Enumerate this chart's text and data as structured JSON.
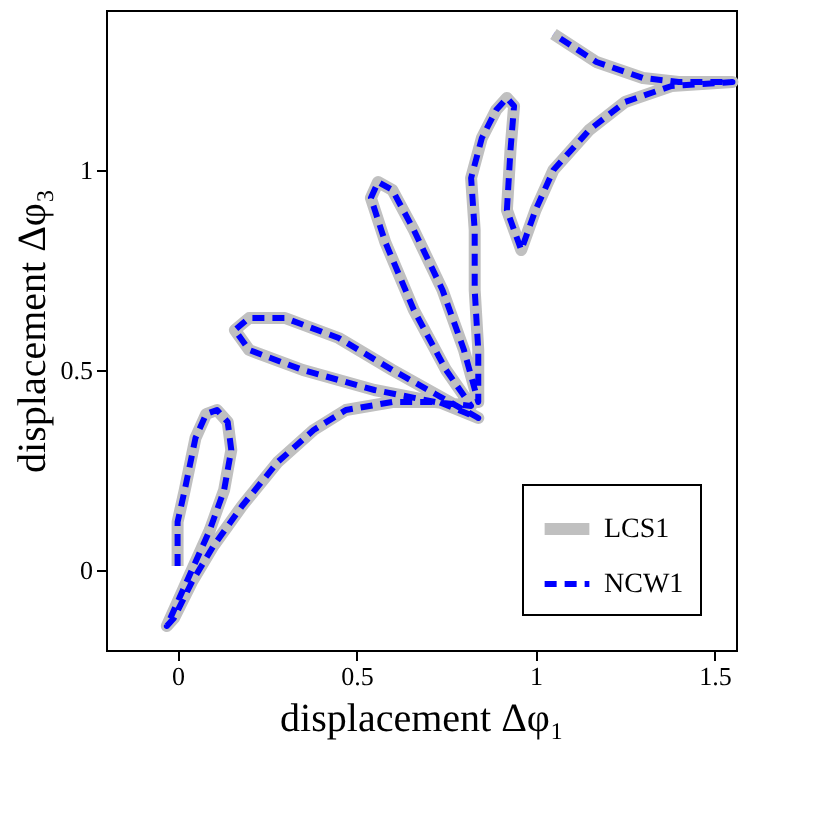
{
  "chart_data": {
    "type": "line",
    "xlabel": "displacement Δφ₁",
    "ylabel": "displacement Δφ₃",
    "xlim": [
      -0.2,
      1.56
    ],
    "ylim": [
      -0.2,
      1.4
    ],
    "xticks": [
      0,
      0.5,
      1,
      1.5
    ],
    "yticks": [
      0,
      0.5,
      1
    ],
    "grid": false,
    "legend": "bottom right",
    "x": [
      0,
      0.0,
      0.02,
      0.05,
      0.08,
      0.11,
      0.14,
      0.15,
      0.13,
      0.09,
      0.04,
      0.0,
      -0.03,
      -0.01,
      0.04,
      0.1,
      0.18,
      0.28,
      0.38,
      0.47,
      0.6,
      0.73,
      0.84,
      0.72,
      0.6,
      0.45,
      0.3,
      0.2,
      0.16,
      0.2,
      0.35,
      0.55,
      0.72,
      0.82,
      0.75,
      0.66,
      0.58,
      0.54,
      0.56,
      0.6,
      0.66,
      0.74,
      0.8,
      0.84,
      0.84,
      0.83,
      0.83,
      0.82,
      0.85,
      0.89,
      0.92,
      0.94,
      0.93,
      0.92,
      0.96,
      1.0,
      1.05,
      1.15,
      1.25,
      1.38,
      1.55,
      1.4,
      1.3,
      1.17,
      1.05
    ],
    "series": [
      {
        "name": "LCS1",
        "color": "#c0c0c0",
        "line_style": "solid",
        "values": [
          0.01,
          0.12,
          0.2,
          0.33,
          0.39,
          0.4,
          0.37,
          0.3,
          0.2,
          0.1,
          0.0,
          -0.08,
          -0.14,
          -0.12,
          -0.03,
          0.06,
          0.16,
          0.27,
          0.35,
          0.4,
          0.42,
          0.42,
          0.38,
          0.44,
          0.5,
          0.58,
          0.63,
          0.63,
          0.6,
          0.55,
          0.5,
          0.45,
          0.42,
          0.41,
          0.5,
          0.65,
          0.82,
          0.93,
          0.97,
          0.95,
          0.85,
          0.7,
          0.55,
          0.42,
          0.55,
          0.7,
          0.85,
          0.98,
          1.08,
          1.15,
          1.18,
          1.16,
          1.05,
          0.9,
          0.8,
          0.9,
          1.0,
          1.1,
          1.17,
          1.21,
          1.22,
          1.22,
          1.23,
          1.27,
          1.34
        ]
      },
      {
        "name": "NCW1",
        "color": "#0000ff",
        "line_style": "dashed",
        "values": [
          0.01,
          0.12,
          0.2,
          0.33,
          0.39,
          0.4,
          0.37,
          0.3,
          0.2,
          0.1,
          0.0,
          -0.08,
          -0.14,
          -0.12,
          -0.03,
          0.06,
          0.16,
          0.27,
          0.35,
          0.4,
          0.42,
          0.42,
          0.38,
          0.44,
          0.5,
          0.58,
          0.63,
          0.63,
          0.6,
          0.55,
          0.5,
          0.45,
          0.42,
          0.41,
          0.5,
          0.65,
          0.82,
          0.93,
          0.97,
          0.95,
          0.85,
          0.7,
          0.55,
          0.42,
          0.55,
          0.7,
          0.85,
          0.98,
          1.08,
          1.15,
          1.18,
          1.16,
          1.05,
          0.9,
          0.8,
          0.9,
          1.0,
          1.1,
          1.17,
          1.21,
          1.22,
          1.22,
          1.23,
          1.27,
          1.34
        ]
      }
    ]
  }
}
